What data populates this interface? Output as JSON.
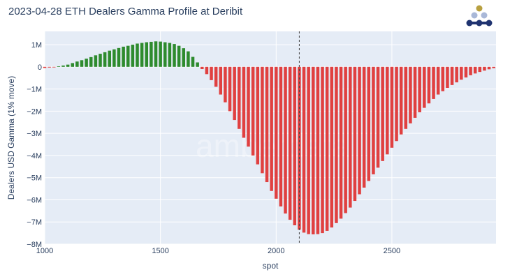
{
  "title": "2023-04-28 ETH Dealers Gamma Profile at Deribit",
  "watermark": "amberdata",
  "colors": {
    "plot_bg": "#e5ecf6",
    "grid": "#ffffff",
    "positive": "#2e8b2e",
    "negative": "#e04040",
    "spot_line": "#444444",
    "logo_dot_top": "#b8a040",
    "logo_mid": "#a9b8d8",
    "logo_bottom": "#1f3370"
  },
  "chart_data": {
    "type": "bar",
    "title": "2023-04-28 ETH Dealers Gamma Profile at Deribit",
    "xlabel": "spot",
    "ylabel": "Dealers USD Gamma (1% move)",
    "xlim": [
      1000,
      2950
    ],
    "ylim": [
      -8000000,
      1600000
    ],
    "grid": true,
    "spot_marker": 2100,
    "x_ticks": [
      {
        "value": 1000,
        "label": "1000"
      },
      {
        "value": 1500,
        "label": "1500"
      },
      {
        "value": 2000,
        "label": "2000"
      },
      {
        "value": 2500,
        "label": "2500"
      }
    ],
    "y_ticks": [
      {
        "value": 1000000,
        "label": "1M"
      },
      {
        "value": 0,
        "label": "0"
      },
      {
        "value": -1000000,
        "label": "−1M"
      },
      {
        "value": -2000000,
        "label": "−2M"
      },
      {
        "value": -3000000,
        "label": "−3M"
      },
      {
        "value": -4000000,
        "label": "−4M"
      },
      {
        "value": -5000000,
        "label": "−5M"
      },
      {
        "value": -6000000,
        "label": "−6M"
      },
      {
        "value": -7000000,
        "label": "−7M"
      },
      {
        "value": -8000000,
        "label": "−8M"
      }
    ],
    "bar_width": 16,
    "points": [
      {
        "x": 1000,
        "y": -50000
      },
      {
        "x": 1020,
        "y": -30000
      },
      {
        "x": 1040,
        "y": -10000
      },
      {
        "x": 1060,
        "y": 20000
      },
      {
        "x": 1080,
        "y": 60000
      },
      {
        "x": 1100,
        "y": 100000
      },
      {
        "x": 1120,
        "y": 170000
      },
      {
        "x": 1140,
        "y": 240000
      },
      {
        "x": 1160,
        "y": 300000
      },
      {
        "x": 1180,
        "y": 370000
      },
      {
        "x": 1200,
        "y": 440000
      },
      {
        "x": 1220,
        "y": 520000
      },
      {
        "x": 1240,
        "y": 590000
      },
      {
        "x": 1260,
        "y": 660000
      },
      {
        "x": 1280,
        "y": 730000
      },
      {
        "x": 1300,
        "y": 790000
      },
      {
        "x": 1320,
        "y": 850000
      },
      {
        "x": 1340,
        "y": 910000
      },
      {
        "x": 1360,
        "y": 950000
      },
      {
        "x": 1380,
        "y": 1000000
      },
      {
        "x": 1400,
        "y": 1050000
      },
      {
        "x": 1420,
        "y": 1080000
      },
      {
        "x": 1440,
        "y": 1110000
      },
      {
        "x": 1460,
        "y": 1130000
      },
      {
        "x": 1480,
        "y": 1150000
      },
      {
        "x": 1500,
        "y": 1140000
      },
      {
        "x": 1520,
        "y": 1110000
      },
      {
        "x": 1540,
        "y": 1080000
      },
      {
        "x": 1560,
        "y": 1030000
      },
      {
        "x": 1580,
        "y": 950000
      },
      {
        "x": 1600,
        "y": 840000
      },
      {
        "x": 1620,
        "y": 700000
      },
      {
        "x": 1640,
        "y": 450000
      },
      {
        "x": 1660,
        "y": 200000
      },
      {
        "x": 1680,
        "y": -100000
      },
      {
        "x": 1700,
        "y": -330000
      },
      {
        "x": 1720,
        "y": -600000
      },
      {
        "x": 1740,
        "y": -900000
      },
      {
        "x": 1760,
        "y": -1250000
      },
      {
        "x": 1780,
        "y": -1600000
      },
      {
        "x": 1800,
        "y": -2000000
      },
      {
        "x": 1820,
        "y": -2400000
      },
      {
        "x": 1840,
        "y": -2800000
      },
      {
        "x": 1860,
        "y": -3200000
      },
      {
        "x": 1880,
        "y": -3600000
      },
      {
        "x": 1900,
        "y": -4000000
      },
      {
        "x": 1920,
        "y": -4400000
      },
      {
        "x": 1940,
        "y": -4800000
      },
      {
        "x": 1960,
        "y": -5200000
      },
      {
        "x": 1980,
        "y": -5600000
      },
      {
        "x": 2000,
        "y": -5950000
      },
      {
        "x": 2020,
        "y": -6300000
      },
      {
        "x": 2040,
        "y": -6620000
      },
      {
        "x": 2060,
        "y": -6900000
      },
      {
        "x": 2080,
        "y": -7150000
      },
      {
        "x": 2100,
        "y": -7350000
      },
      {
        "x": 2120,
        "y": -7480000
      },
      {
        "x": 2140,
        "y": -7550000
      },
      {
        "x": 2160,
        "y": -7560000
      },
      {
        "x": 2180,
        "y": -7550000
      },
      {
        "x": 2200,
        "y": -7500000
      },
      {
        "x": 2220,
        "y": -7400000
      },
      {
        "x": 2240,
        "y": -7250000
      },
      {
        "x": 2260,
        "y": -7050000
      },
      {
        "x": 2280,
        "y": -6850000
      },
      {
        "x": 2300,
        "y": -6600000
      },
      {
        "x": 2320,
        "y": -6350000
      },
      {
        "x": 2340,
        "y": -6050000
      },
      {
        "x": 2360,
        "y": -5750000
      },
      {
        "x": 2380,
        "y": -5450000
      },
      {
        "x": 2400,
        "y": -5150000
      },
      {
        "x": 2420,
        "y": -4850000
      },
      {
        "x": 2440,
        "y": -4550000
      },
      {
        "x": 2460,
        "y": -4250000
      },
      {
        "x": 2480,
        "y": -3950000
      },
      {
        "x": 2500,
        "y": -3650000
      },
      {
        "x": 2520,
        "y": -3350000
      },
      {
        "x": 2540,
        "y": -3050000
      },
      {
        "x": 2560,
        "y": -2800000
      },
      {
        "x": 2580,
        "y": -2550000
      },
      {
        "x": 2600,
        "y": -2300000
      },
      {
        "x": 2620,
        "y": -2050000
      },
      {
        "x": 2640,
        "y": -1850000
      },
      {
        "x": 2660,
        "y": -1650000
      },
      {
        "x": 2680,
        "y": -1450000
      },
      {
        "x": 2700,
        "y": -1250000
      },
      {
        "x": 2720,
        "y": -1100000
      },
      {
        "x": 2740,
        "y": -950000
      },
      {
        "x": 2760,
        "y": -820000
      },
      {
        "x": 2780,
        "y": -700000
      },
      {
        "x": 2800,
        "y": -580000
      },
      {
        "x": 2820,
        "y": -480000
      },
      {
        "x": 2840,
        "y": -380000
      },
      {
        "x": 2860,
        "y": -300000
      },
      {
        "x": 2880,
        "y": -230000
      },
      {
        "x": 2900,
        "y": -170000
      },
      {
        "x": 2920,
        "y": -110000
      },
      {
        "x": 2940,
        "y": -60000
      }
    ]
  }
}
